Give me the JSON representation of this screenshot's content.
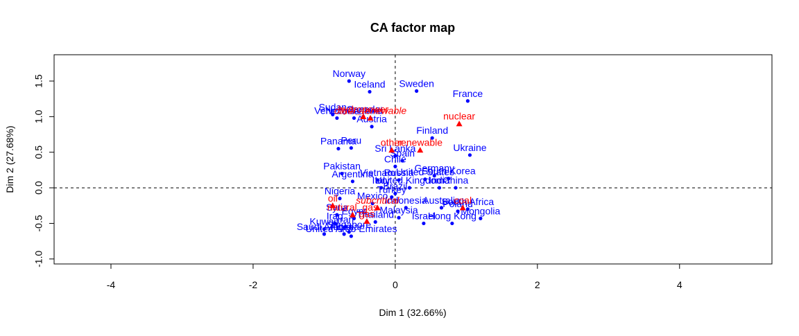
{
  "chart_data": {
    "type": "scatter",
    "title": "CA factor map",
    "xlabel": "Dim 1 (32.66%)",
    "ylabel": "Dim 2 (27.68%)",
    "xlim": [
      -4.8,
      5.3
    ],
    "ylim": [
      -1.07,
      1.87
    ],
    "x_ticks": [
      -4,
      -2,
      0,
      2,
      4
    ],
    "x_tick_labels": [
      "-4",
      "-2",
      "0",
      "2",
      "4"
    ],
    "y_ticks": [
      -1.0,
      -0.5,
      0.0,
      0.5,
      1.0,
      1.5
    ],
    "y_tick_labels": [
      "-1.0",
      "-0.5",
      "0.0",
      "0.5",
      "1.0",
      "1.5"
    ],
    "reference_lines": {
      "x": 0,
      "y": 0,
      "style": "dashed"
    },
    "colors": {
      "row_points": "#0000ff",
      "column_points": "#ff0000",
      "axes": "#000000",
      "background": "#ffffff"
    },
    "series": [
      {
        "role": "rows",
        "marker": "circle",
        "points": [
          {
            "label": "Norway",
            "x": -0.65,
            "y": 1.5
          },
          {
            "label": "Iceland",
            "x": -0.36,
            "y": 1.35
          },
          {
            "label": "Sweden",
            "x": 0.3,
            "y": 1.36
          },
          {
            "label": "France",
            "x": 1.02,
            "y": 1.22
          },
          {
            "label": "Sudan",
            "x": -0.88,
            "y": 1.03
          },
          {
            "label": "Canada",
            "x": -0.45,
            "y": 1.0
          },
          {
            "label": "Venezuela",
            "x": -0.82,
            "y": 0.98
          },
          {
            "label": "New Zealand",
            "x": -0.58,
            "y": 0.98
          },
          {
            "label": "Austria",
            "x": -0.33,
            "y": 0.86
          },
          {
            "label": "Finland",
            "x": 0.52,
            "y": 0.7
          },
          {
            "label": "Peru",
            "x": -0.62,
            "y": 0.56
          },
          {
            "label": "Panama",
            "x": -0.8,
            "y": 0.55
          },
          {
            "label": "Ukraine",
            "x": 1.05,
            "y": 0.46
          },
          {
            "label": "Sri Lanka",
            "x": 0.0,
            "y": 0.45
          },
          {
            "label": "Spain",
            "x": 0.1,
            "y": 0.38
          },
          {
            "label": "Chile",
            "x": 0.0,
            "y": 0.3
          },
          {
            "label": "Pakistan",
            "x": -0.75,
            "y": 0.2
          },
          {
            "label": "Germany",
            "x": 0.55,
            "y": 0.17
          },
          {
            "label": "Argentina",
            "x": -0.6,
            "y": 0.09
          },
          {
            "label": "Vietnam",
            "x": -0.25,
            "y": 0.11
          },
          {
            "label": "Russia",
            "x": 0.05,
            "y": 0.11
          },
          {
            "label": "United States",
            "x": 0.42,
            "y": 0.12
          },
          {
            "label": "South Korea",
            "x": 0.75,
            "y": 0.13
          },
          {
            "label": "Italy",
            "x": -0.2,
            "y": 0.0
          },
          {
            "label": "United Kingdom",
            "x": 0.2,
            "y": 0.0
          },
          {
            "label": "India",
            "x": 0.62,
            "y": 0.0
          },
          {
            "label": "China",
            "x": 0.85,
            "y": 0.0
          },
          {
            "label": "Brazil",
            "x": 0.0,
            "y": -0.08
          },
          {
            "label": "Turkey",
            "x": -0.05,
            "y": -0.13
          },
          {
            "label": "Nigeria",
            "x": -0.78,
            "y": -0.15
          },
          {
            "label": "Mexico",
            "x": -0.32,
            "y": -0.22
          },
          {
            "label": "Indonesia",
            "x": 0.15,
            "y": -0.28
          },
          {
            "label": "Australia",
            "x": 0.65,
            "y": -0.28
          },
          {
            "label": "South Africa",
            "x": 1.02,
            "y": -0.3
          },
          {
            "label": "Poland",
            "x": 0.88,
            "y": -0.33
          },
          {
            "label": "Syria",
            "x": -0.82,
            "y": -0.38
          },
          {
            "label": "Egypt",
            "x": -0.58,
            "y": -0.43
          },
          {
            "label": "Thailand",
            "x": -0.28,
            "y": -0.48
          },
          {
            "label": "Malaysia",
            "x": 0.05,
            "y": -0.42
          },
          {
            "label": "Mongolia",
            "x": 1.2,
            "y": -0.43
          },
          {
            "label": "Israel",
            "x": 0.4,
            "y": -0.5
          },
          {
            "label": "Hong Kong",
            "x": 0.8,
            "y": -0.5
          },
          {
            "label": "Iraq",
            "x": -0.85,
            "y": -0.5
          },
          {
            "label": "Iran",
            "x": -0.7,
            "y": -0.55
          },
          {
            "label": "Kuwait",
            "x": -1.0,
            "y": -0.58
          },
          {
            "label": "Singapore",
            "x": -0.65,
            "y": -0.62
          },
          {
            "label": "Saudi Arabia",
            "x": -1.0,
            "y": -0.65
          },
          {
            "label": "Algeria",
            "x": -0.72,
            "y": -0.65
          },
          {
            "label": "United Arab Emirates",
            "x": -0.62,
            "y": -0.68
          }
        ]
      },
      {
        "role": "columns",
        "marker": "triangle",
        "points": [
          {
            "label": "hydropower",
            "x": -0.45,
            "y": 1.0,
            "italic": false
          },
          {
            "label": "other_renewable",
            "x": -0.35,
            "y": 0.98,
            "italic": true
          },
          {
            "label": "nuclear",
            "x": 0.9,
            "y": 0.9,
            "italic": false
          },
          {
            "label": "other",
            "x": -0.05,
            "y": 0.53,
            "italic": false
          },
          {
            "label": "renewable",
            "x": 0.35,
            "y": 0.53,
            "italic": false
          },
          {
            "label": "oil",
            "x": -0.88,
            "y": -0.25,
            "italic": false
          },
          {
            "label": "subcritical",
            "x": -0.25,
            "y": -0.28,
            "italic": true
          },
          {
            "label": "coal",
            "x": 0.95,
            "y": -0.28,
            "italic": false
          },
          {
            "label": "natural_gas",
            "x": -0.6,
            "y": -0.38,
            "italic": false
          },
          {
            "label": "gas",
            "x": -0.4,
            "y": -0.47,
            "italic": false
          }
        ]
      }
    ]
  }
}
